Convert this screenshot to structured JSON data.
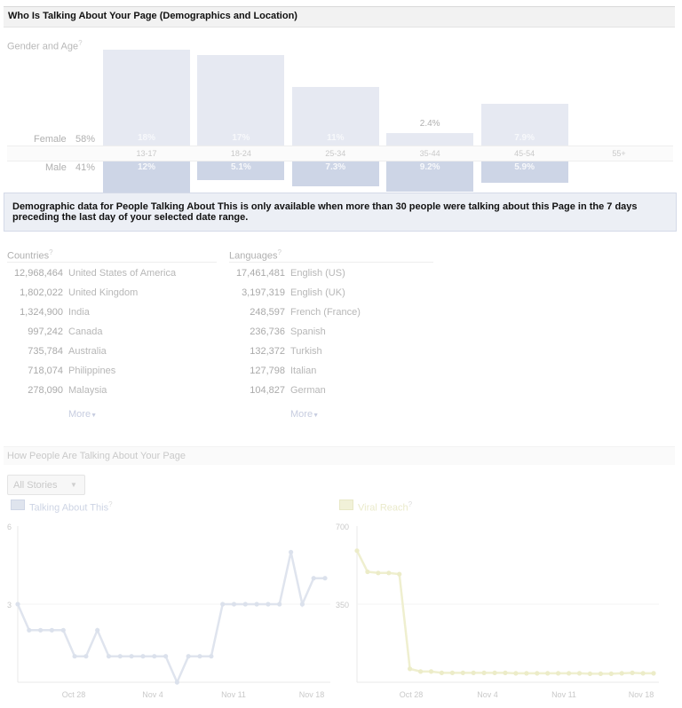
{
  "header": {
    "title": "Who Is Talking About Your Page (Demographics and Location)"
  },
  "gender_age": {
    "label": "Gender and Age",
    "help_mark": "?",
    "female_label": "Female",
    "female_pct": "58%",
    "male_label": "Male",
    "male_pct": "41%",
    "groups": [
      {
        "age": "13-17",
        "female": "18%",
        "male": "12%",
        "female_value": 18,
        "male_value": 12
      },
      {
        "age": "18-24",
        "female": "17%",
        "male": "5.1%",
        "female_value": 17,
        "male_value": 5.1
      },
      {
        "age": "25-34",
        "female": "11%",
        "male": "7.3%",
        "female_value": 11,
        "male_value": 7.3
      },
      {
        "age": "35-44",
        "female": "2.4%",
        "male": "9.2%",
        "female_value": 2.4,
        "male_value": 9.2
      },
      {
        "age": "45-54",
        "female": "7.9%",
        "male": "5.9%",
        "female_value": 7.9,
        "male_value": 5.9
      },
      {
        "age": "55+",
        "female": "",
        "male": "",
        "female_value": 0,
        "male_value": 0
      }
    ]
  },
  "notice": {
    "text": "Demographic data for People Talking About This is only available when more than 30 people were talking about this Page in the 7 days preceding the last day of your selected date range."
  },
  "countries": {
    "label": "Countries",
    "help_mark": "?",
    "items": [
      {
        "count": "12,968,464",
        "name": "United States of America"
      },
      {
        "count": "1,802,022",
        "name": "United Kingdom"
      },
      {
        "count": "1,324,900",
        "name": "India"
      },
      {
        "count": "997,242",
        "name": "Canada"
      },
      {
        "count": "735,784",
        "name": "Australia"
      },
      {
        "count": "718,074",
        "name": "Philippines"
      },
      {
        "count": "278,090",
        "name": "Malaysia"
      }
    ],
    "more": "More",
    "more_arrow": "▼"
  },
  "languages": {
    "label": "Languages",
    "help_mark": "?",
    "items": [
      {
        "count": "17,461,481",
        "name": "English (US)"
      },
      {
        "count": "3,197,319",
        "name": "English (UK)"
      },
      {
        "count": "248,597",
        "name": "French (France)"
      },
      {
        "count": "236,736",
        "name": "Spanish"
      },
      {
        "count": "132,372",
        "name": "Turkish"
      },
      {
        "count": "127,798",
        "name": "Italian"
      },
      {
        "count": "104,827",
        "name": "German"
      }
    ],
    "more": "More",
    "more_arrow": "▼"
  },
  "how_talking": {
    "title": "How People Are Talking About Your Page",
    "filter_value": "All Stories",
    "filter_arrow": "▼"
  },
  "colors": {
    "female_bar": "#e6e9f2",
    "male_bar": "#cdd5e6",
    "talking_line": "#dfe4ee",
    "viral_line": "#f1f1d8"
  },
  "chart_data": [
    {
      "type": "line",
      "title": "",
      "legend": {
        "name": "Talking About This",
        "help_mark": "?",
        "color": "#dfe4ee"
      },
      "ylim": [
        0,
        6
      ],
      "yticks": [
        "6",
        "3"
      ],
      "xticks": [
        "Oct 28",
        "Nov 4",
        "Nov 11",
        "Nov 18"
      ],
      "series": [
        {
          "name": "Talking About This",
          "values": [
            3,
            2,
            2,
            2,
            2,
            1,
            1,
            2,
            1,
            1,
            1,
            1,
            1,
            1,
            0,
            1,
            1,
            1,
            3,
            3,
            3,
            3,
            3,
            3,
            5,
            3,
            4,
            4
          ]
        }
      ]
    },
    {
      "type": "line",
      "title": "",
      "legend": {
        "name": "Viral Reach",
        "help_mark": "?",
        "color": "#f1f1d8"
      },
      "ylim": [
        0,
        700
      ],
      "yticks": [
        "700",
        "350"
      ],
      "xticks": [
        "Oct 28",
        "Nov 4",
        "Nov 11",
        "Nov 18"
      ],
      "series": [
        {
          "name": "Viral Reach",
          "values": [
            590,
            495,
            490,
            490,
            485,
            60,
            48,
            48,
            42,
            42,
            42,
            42,
            42,
            42,
            42,
            40,
            40,
            40,
            40,
            40,
            40,
            40,
            38,
            38,
            38,
            40,
            42,
            40,
            40
          ]
        }
      ]
    }
  ]
}
